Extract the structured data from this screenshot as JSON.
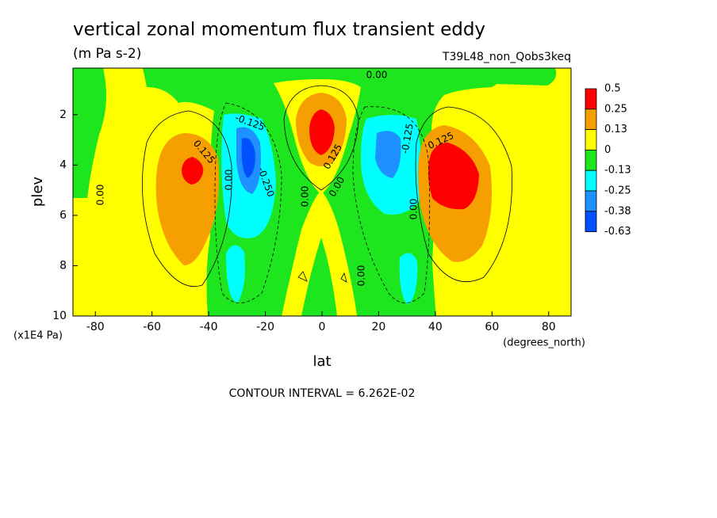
{
  "chart_data": {
    "type": "contour",
    "title": "vertical zonal momentum flux transient eddy",
    "subtitle": "(m Pa s-2)",
    "dataset": "T39L48_non_Qobs3keq",
    "x_label": "lat",
    "x_units": "(degrees_north)",
    "y_label": "plev",
    "y_units": "(x1E4 Pa)",
    "xlim": [
      -87.9,
      87.9
    ],
    "ylim": [
      10,
      0.15
    ],
    "xticks": [
      -80,
      -60,
      -40,
      -20,
      0,
      20,
      40,
      60,
      80
    ],
    "yticks": [
      2,
      4,
      6,
      8,
      10
    ],
    "levels": [
      0.5,
      0.25,
      0.13,
      0,
      -0.13,
      -0.25,
      -0.38,
      -0.63
    ],
    "level_colors": [
      "#ff0000",
      "#f5a000",
      "#ffff00",
      "#1ee61e",
      "#00ffff",
      "#1e90ff",
      "#0050ff"
    ],
    "contour_labels": [
      {
        "value": 0,
        "label": "0.00"
      },
      {
        "value": -0.125,
        "label": "-0.125"
      },
      {
        "value": 0.125,
        "label": "0.125"
      },
      {
        "value": 0.125,
        "label": "0.125"
      },
      {
        "value": -0.25,
        "label": "-0.250"
      },
      {
        "value": 0,
        "label": "0.00"
      },
      {
        "value": 0,
        "label": "0.00"
      },
      {
        "value": 0.125,
        "label": "0.125"
      },
      {
        "value": 0,
        "label": "0.00"
      },
      {
        "value": -0.125,
        "label": "-0.125"
      },
      {
        "value": 0,
        "label": "0.00"
      },
      {
        "value": 0,
        "label": "0.00"
      },
      {
        "value": 0,
        "label": "0.00"
      }
    ],
    "footnote": "CONTOUR INTERVAL = 6.262E-02"
  }
}
